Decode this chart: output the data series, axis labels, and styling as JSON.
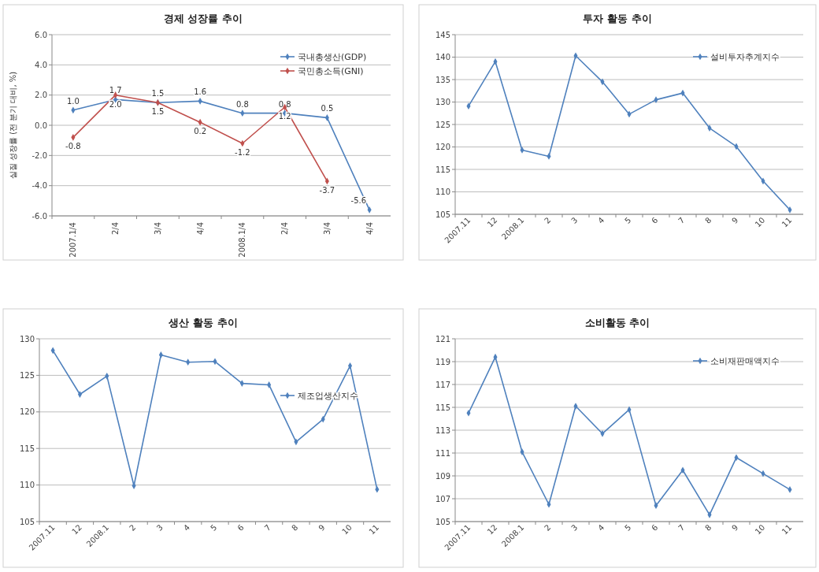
{
  "chart_data": [
    {
      "type": "line",
      "title": "경제 성장률 추이",
      "ylabel": "실질 성장률 (전 분기 대비, %)",
      "categories": [
        "2007.1/4",
        "2/4",
        "3/4",
        "4/4",
        "2008.1/4",
        "2/4",
        "3/4",
        "4/4"
      ],
      "series": [
        {
          "name": "국내총생산(GDP)",
          "color": "#4f81bd",
          "values": [
            1.0,
            1.7,
            1.5,
            1.6,
            0.8,
            0.8,
            0.5,
            -5.6
          ],
          "value_labels": [
            "1.0",
            "1.7",
            "1.5",
            "1.6",
            "0.8",
            "0.8",
            "0.5",
            "-5.6"
          ]
        },
        {
          "name": "국민총소득(GNI)",
          "color": "#c0504d",
          "values": [
            -0.8,
            2.0,
            1.5,
            0.2,
            -1.2,
            1.2,
            -3.7,
            null
          ],
          "value_labels": [
            "-0.8",
            "2.0",
            "1.5",
            "0.2",
            "-1.2",
            "1.2",
            "-3.7",
            null
          ]
        }
      ],
      "ylim": [
        -6,
        6
      ],
      "yticks": [
        {
          "value": -6,
          "label": "-6.0"
        },
        {
          "value": -4,
          "label": "-4.0"
        },
        {
          "value": -2,
          "label": "-2.0"
        },
        {
          "value": 0,
          "label": "0.0"
        },
        {
          "value": 2,
          "label": "2.0"
        },
        {
          "value": 4,
          "label": "4.0"
        },
        {
          "value": 6,
          "label": "6.0"
        }
      ],
      "grid": "y",
      "legend": "top right",
      "marker": "diamond"
    },
    {
      "type": "line",
      "title": "투자 활동 추이",
      "categories": [
        "2007.11",
        "12",
        "2008.1",
        "2",
        "3",
        "4",
        "5",
        "6",
        "7",
        "8",
        "9",
        "10",
        "11"
      ],
      "series": [
        {
          "name": "설비투자추계지수",
          "color": "#4f81bd",
          "values": [
            129.1,
            139,
            119.3,
            117.9,
            140.3,
            134.5,
            127.3,
            130.5,
            132,
            124.2,
            120.1,
            112.4,
            106
          ]
        }
      ],
      "ylim": [
        105,
        145
      ],
      "yticks": [
        105,
        110,
        115,
        120,
        125,
        130,
        135,
        140,
        145
      ],
      "grid": "y",
      "legend": "top right",
      "marker": "diamond"
    },
    {
      "type": "line",
      "title": "생산 활동 추이",
      "categories": [
        "2007.11",
        "12",
        "2008.1",
        "2",
        "3",
        "4",
        "5",
        "6",
        "7",
        "8",
        "9",
        "10",
        "11"
      ],
      "series": [
        {
          "name": "제조업생산지수",
          "color": "#4f81bd",
          "values": [
            128.4,
            122.4,
            124.9,
            109.9,
            127.8,
            126.8,
            126.9,
            123.9,
            123.7,
            115.9,
            119,
            126.3,
            109.4
          ]
        }
      ],
      "ylim": [
        105,
        130
      ],
      "yticks": [
        105,
        110,
        115,
        120,
        125,
        130
      ],
      "grid": "y",
      "legend": "right",
      "marker": "diamond"
    },
    {
      "type": "line",
      "title": "소비활동 추이",
      "categories": [
        "2007.11",
        "12",
        "2008.1",
        "2",
        "3",
        "4",
        "5",
        "6",
        "7",
        "8",
        "9",
        "10",
        "11"
      ],
      "series": [
        {
          "name": "소비재판매액지수",
          "color": "#4f81bd",
          "values": [
            114.5,
            119.4,
            111.1,
            106.5,
            115.1,
            112.7,
            114.8,
            106.4,
            109.5,
            105.6,
            110.6,
            109.2,
            107.8
          ]
        }
      ],
      "ylim": [
        105,
        121
      ],
      "yticks": [
        105,
        107,
        109,
        111,
        113,
        115,
        117,
        119,
        121
      ],
      "grid": "y",
      "legend": "top right",
      "marker": "diamond"
    }
  ]
}
